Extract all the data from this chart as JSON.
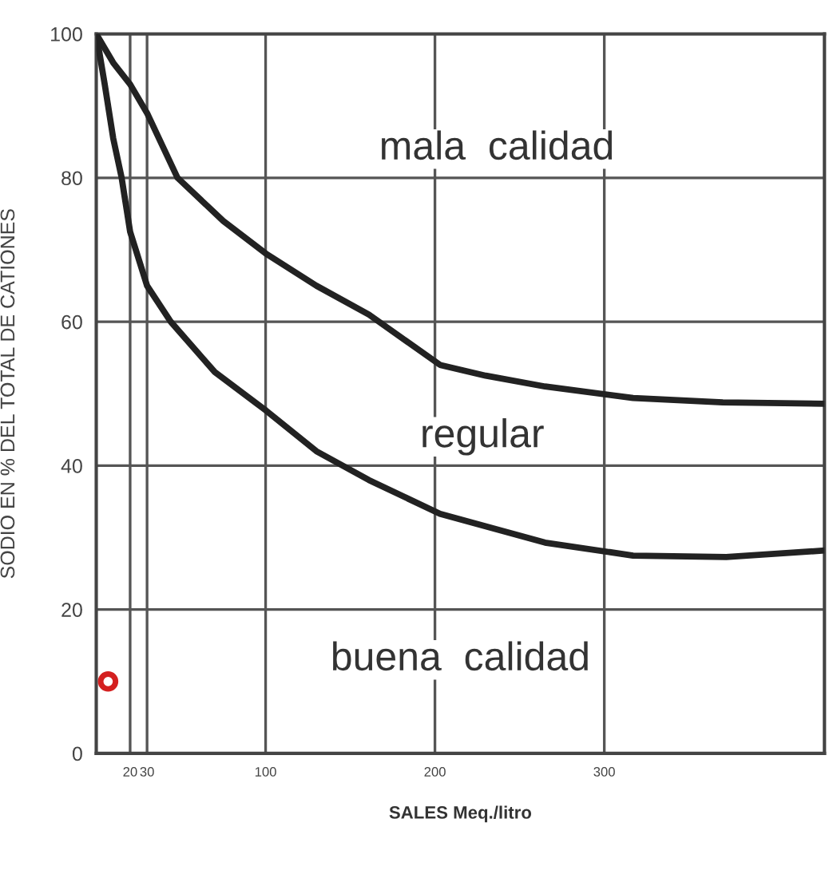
{
  "chart_data": {
    "type": "line",
    "xlabel": "SALES Meq./litro",
    "ylabel": "SODIO EN % DEL TOTAL DE CATIONES",
    "xlim": [
      0,
      430
    ],
    "xticks": [
      20,
      30,
      100,
      200,
      300
    ],
    "ylim": [
      0,
      100
    ],
    "yticks": [
      0,
      20,
      40,
      60,
      80,
      100
    ],
    "grid": true,
    "marker": "none",
    "line_style": "solid",
    "series": [
      {
        "color": "#222222",
        "x": [
          0,
          10,
          20,
          30,
          48,
          75,
          100,
          130,
          161,
          203,
          230,
          265,
          317,
          370,
          430
        ],
        "values": [
          100,
          96,
          93,
          89,
          80,
          74,
          69.5,
          65,
          61,
          54,
          52.5,
          51,
          49.4,
          48.8,
          48.6
        ]
      },
      {
        "color": "#222222",
        "x": [
          0,
          5,
          10,
          15,
          20,
          30,
          44,
          70,
          100,
          130,
          161,
          203,
          265,
          317,
          372,
          430
        ],
        "values": [
          100,
          93,
          85.5,
          80,
          72.5,
          65,
          60,
          53,
          47.7,
          42,
          38,
          33.3,
          29.3,
          27.5,
          27.3,
          28.2
        ]
      },
      {
        "type": "scatter",
        "marker": "circle",
        "color": "#d42020",
        "x": [
          7
        ],
        "values": [
          10
        ]
      }
    ],
    "annotations": [
      "mala  calidad",
      "regular",
      "buena  calidad"
    ]
  }
}
